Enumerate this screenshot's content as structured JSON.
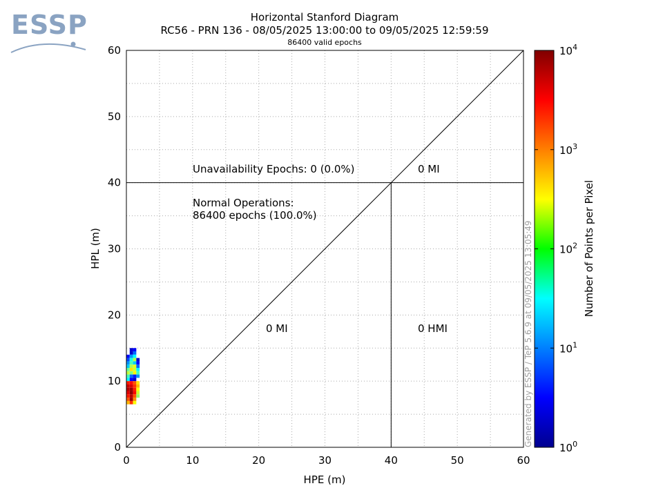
{
  "logo": {
    "text": "ESSP",
    "color": "#8aa3c2"
  },
  "chart_data": {
    "type": "heatmap",
    "title": "Horizontal Stanford Diagram",
    "subtitle": "RC56 - PRN 136 - 08/05/2025 13:00:00 to 09/05/2025 12:59:59",
    "valid_epochs_text": "86400 valid epochs",
    "xlabel": "HPE (m)",
    "ylabel": "HPL (m)",
    "xlim": [
      0,
      60
    ],
    "ylim": [
      0,
      60
    ],
    "x_ticks": [
      "0",
      "10",
      "20",
      "30",
      "40",
      "50",
      "60"
    ],
    "y_ticks": [
      "0",
      "10",
      "20",
      "30",
      "40",
      "50",
      "60"
    ],
    "grid": true,
    "alert_limit": 40,
    "annotations": {
      "unavailability": "Unavailability Epochs: 0 (0.0%)",
      "normal_ops_line1": "Normal Operations:",
      "normal_ops_line2": "86400 epochs (100.0%)",
      "mi_upper": "0 MI",
      "mi_lower": "0 MI",
      "hmi": "0 HMI"
    },
    "colorbar": {
      "label": "Number of Points per Pixel",
      "scale": "log",
      "range": [
        1,
        10000
      ],
      "tick_labels": [
        {
          "base": "10",
          "exp": "0",
          "value": 1
        },
        {
          "base": "10",
          "exp": "1",
          "value": 10
        },
        {
          "base": "10",
          "exp": "2",
          "value": 100
        },
        {
          "base": "10",
          "exp": "3",
          "value": 1000
        },
        {
          "base": "10",
          "exp": "4",
          "value": 10000
        }
      ]
    },
    "cell_size": 0.5,
    "cells": [
      {
        "x": 0.5,
        "y": 14.5,
        "count": 2
      },
      {
        "x": 1.0,
        "y": 14.5,
        "count": 3
      },
      {
        "x": 0.5,
        "y": 14.0,
        "count": 2
      },
      {
        "x": 1.0,
        "y": 14.0,
        "count": 8
      },
      {
        "x": 0.0,
        "y": 13.5,
        "count": 3
      },
      {
        "x": 0.5,
        "y": 13.5,
        "count": 12
      },
      {
        "x": 1.0,
        "y": 13.5,
        "count": 30
      },
      {
        "x": 0.0,
        "y": 13.0,
        "count": 6
      },
      {
        "x": 0.5,
        "y": 13.0,
        "count": 40
      },
      {
        "x": 1.0,
        "y": 13.0,
        "count": 150
      },
      {
        "x": 1.5,
        "y": 13.0,
        "count": 2
      },
      {
        "x": 0.0,
        "y": 12.5,
        "count": 12
      },
      {
        "x": 0.5,
        "y": 12.5,
        "count": 60
      },
      {
        "x": 1.0,
        "y": 12.5,
        "count": 20
      },
      {
        "x": 1.5,
        "y": 12.5,
        "count": 3
      },
      {
        "x": 0.0,
        "y": 12.0,
        "count": 20
      },
      {
        "x": 0.5,
        "y": 12.0,
        "count": 150
      },
      {
        "x": 1.0,
        "y": 12.0,
        "count": 250
      },
      {
        "x": 1.5,
        "y": 12.0,
        "count": 8
      },
      {
        "x": 0.0,
        "y": 11.5,
        "count": 80
      },
      {
        "x": 0.5,
        "y": 11.5,
        "count": 400
      },
      {
        "x": 1.0,
        "y": 11.5,
        "count": 200
      },
      {
        "x": 1.5,
        "y": 11.5,
        "count": 30
      },
      {
        "x": 0.0,
        "y": 11.0,
        "count": 180
      },
      {
        "x": 0.5,
        "y": 11.0,
        "count": 100
      },
      {
        "x": 1.0,
        "y": 11.0,
        "count": 350
      },
      {
        "x": 1.5,
        "y": 11.0,
        "count": 60
      },
      {
        "x": 0.0,
        "y": 10.5,
        "count": 60
      },
      {
        "x": 0.5,
        "y": 10.5,
        "count": 8
      },
      {
        "x": 1.0,
        "y": 10.5,
        "count": 4
      },
      {
        "x": 1.5,
        "y": 10.5,
        "count": 12
      },
      {
        "x": 0.0,
        "y": 10.0,
        "count": 30
      },
      {
        "x": 0.5,
        "y": 10.0,
        "count": 3
      },
      {
        "x": 1.0,
        "y": 10.0,
        "count": 2
      },
      {
        "x": 0.0,
        "y": 9.5,
        "count": 2500
      },
      {
        "x": 0.5,
        "y": 9.5,
        "count": 3000
      },
      {
        "x": 1.0,
        "y": 9.5,
        "count": 1500
      },
      {
        "x": 1.5,
        "y": 9.5,
        "count": 400
      },
      {
        "x": 0.0,
        "y": 9.0,
        "count": 5000
      },
      {
        "x": 0.5,
        "y": 9.0,
        "count": 4500
      },
      {
        "x": 1.0,
        "y": 9.0,
        "count": 2000
      },
      {
        "x": 1.5,
        "y": 9.0,
        "count": 600
      },
      {
        "x": 0.0,
        "y": 8.5,
        "count": 6000
      },
      {
        "x": 0.5,
        "y": 8.5,
        "count": 8000
      },
      {
        "x": 1.0,
        "y": 8.5,
        "count": 2500
      },
      {
        "x": 1.5,
        "y": 8.5,
        "count": 300
      },
      {
        "x": 0.0,
        "y": 8.0,
        "count": 4000
      },
      {
        "x": 0.5,
        "y": 8.0,
        "count": 9000
      },
      {
        "x": 1.0,
        "y": 8.0,
        "count": 3000
      },
      {
        "x": 1.5,
        "y": 8.0,
        "count": 200
      },
      {
        "x": 0.0,
        "y": 7.5,
        "count": 2500
      },
      {
        "x": 0.5,
        "y": 7.5,
        "count": 6000
      },
      {
        "x": 1.0,
        "y": 7.5,
        "count": 1500
      },
      {
        "x": 1.5,
        "y": 7.5,
        "count": 120
      },
      {
        "x": 0.0,
        "y": 7.0,
        "count": 1500
      },
      {
        "x": 0.5,
        "y": 7.0,
        "count": 8000
      },
      {
        "x": 1.0,
        "y": 7.0,
        "count": 900
      },
      {
        "x": 0.0,
        "y": 6.5,
        "count": 600
      },
      {
        "x": 0.5,
        "y": 6.5,
        "count": 2000
      },
      {
        "x": 1.0,
        "y": 6.5,
        "count": 300
      }
    ]
  },
  "watermark": "Generated by ESSP / TeP 5.6.9 at 09/05/2025 13:05:49"
}
